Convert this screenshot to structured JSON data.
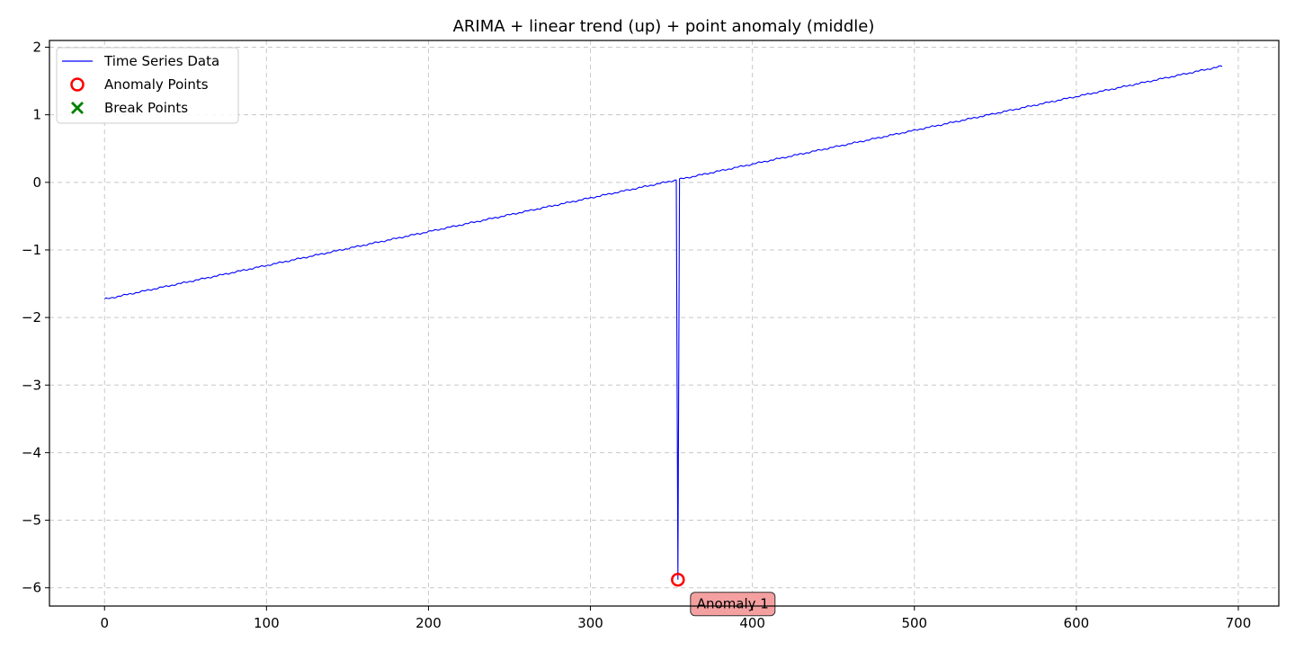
{
  "chart_data": {
    "type": "line",
    "title": "ARIMA + linear trend (up) + point anomaly (middle)",
    "xlabel": "",
    "ylabel": "",
    "xlim": [
      -34,
      725
    ],
    "ylim": [
      -6.27,
      2.1
    ],
    "xticks": [
      0,
      100,
      200,
      300,
      400,
      500,
      600,
      700
    ],
    "yticks": [
      2,
      1,
      0,
      -1,
      -2,
      -3,
      -4,
      -5,
      -6
    ],
    "grid": true,
    "legend_position": "upper-left",
    "series": [
      {
        "name": "Time Series Data",
        "color": "#0000ff",
        "trend": {
          "x_start": 0,
          "x_end": 690,
          "y_start": -1.73,
          "y_end": 1.72
        },
        "anomaly_x": 354,
        "anomaly_y": -5.88
      }
    ],
    "anomaly_points": [
      {
        "x": 354,
        "y": -5.88,
        "label": "Anomaly 1"
      }
    ],
    "break_points": [],
    "legend": [
      {
        "label": "Time Series Data",
        "icon": "line-icon",
        "color": "#0000ff"
      },
      {
        "label": "Anomaly Points",
        "icon": "circle-icon",
        "color": "#ff0000"
      },
      {
        "label": "Break Points",
        "icon": "x-icon",
        "color": "#008000"
      }
    ]
  }
}
